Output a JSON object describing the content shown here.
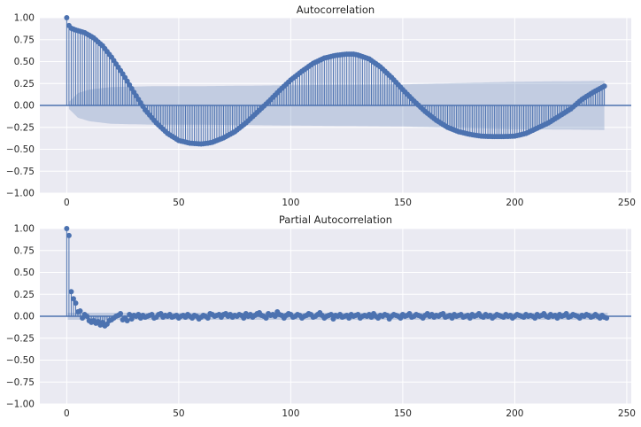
{
  "chart_data": [
    {
      "type": "stem",
      "title": "Autocorrelation",
      "xlabel": "",
      "ylabel": "",
      "xlim": [
        -12,
        252
      ],
      "ylim": [
        -1.0,
        1.0
      ],
      "xticks": [
        0,
        50,
        100,
        150,
        200,
        250
      ],
      "yticks": [
        -1.0,
        -0.75,
        -0.5,
        -0.25,
        0.0,
        0.25,
        0.5,
        0.75,
        1.0
      ],
      "xtick_labels": [
        "0",
        "50",
        "100",
        "150",
        "200",
        "250"
      ],
      "ytick_labels": [
        "−1.00",
        "−0.75",
        "−0.50",
        "−0.25",
        "0.00",
        "0.25",
        "0.50",
        "0.75",
        "1.00"
      ],
      "grid": true,
      "color": "#4c72b0",
      "lags": [
        0,
        1,
        2,
        4,
        8,
        12,
        16,
        20,
        25,
        30,
        35,
        40,
        45,
        50,
        55,
        60,
        63,
        65,
        70,
        75,
        80,
        85,
        90,
        95,
        100,
        105,
        110,
        115,
        120,
        125,
        128,
        130,
        135,
        140,
        145,
        150,
        155,
        160,
        165,
        170,
        175,
        180,
        185,
        190,
        195,
        200,
        205,
        210,
        215,
        220,
        225,
        230,
        235,
        240
      ],
      "values": [
        1.0,
        0.91,
        0.88,
        0.86,
        0.83,
        0.77,
        0.68,
        0.55,
        0.36,
        0.15,
        -0.05,
        -0.2,
        -0.32,
        -0.4,
        -0.43,
        -0.44,
        -0.43,
        -0.42,
        -0.37,
        -0.3,
        -0.2,
        -0.08,
        0.04,
        0.17,
        0.29,
        0.39,
        0.48,
        0.54,
        0.57,
        0.585,
        0.585,
        0.575,
        0.53,
        0.44,
        0.32,
        0.18,
        0.05,
        -0.07,
        -0.17,
        -0.25,
        -0.3,
        -0.33,
        -0.35,
        -0.355,
        -0.355,
        -0.35,
        -0.32,
        -0.26,
        -0.2,
        -0.12,
        -0.04,
        0.07,
        0.15,
        0.22
      ],
      "confidence_band": {
        "lags": [
          1,
          5,
          10,
          20,
          40,
          60,
          100,
          150,
          200,
          240
        ],
        "upper": [
          0.04,
          0.14,
          0.18,
          0.21,
          0.22,
          0.22,
          0.23,
          0.24,
          0.27,
          0.28
        ],
        "lower": [
          -0.04,
          -0.14,
          -0.18,
          -0.21,
          -0.22,
          -0.22,
          -0.23,
          -0.24,
          -0.27,
          -0.28
        ]
      }
    },
    {
      "type": "stem",
      "title": "Partial Autocorrelation",
      "xlabel": "",
      "ylabel": "",
      "xlim": [
        -12,
        252
      ],
      "ylim": [
        -1.0,
        1.0
      ],
      "xticks": [
        0,
        50,
        100,
        150,
        200,
        250
      ],
      "yticks": [
        -1.0,
        -0.75,
        -0.5,
        -0.25,
        0.0,
        0.25,
        0.5,
        0.75,
        1.0
      ],
      "xtick_labels": [
        "0",
        "50",
        "100",
        "150",
        "200",
        "250"
      ],
      "ytick_labels": [
        "−1.00",
        "−0.75",
        "−0.50",
        "−0.25",
        "0.00",
        "0.25",
        "0.50",
        "0.75",
        "1.00"
      ],
      "grid": true,
      "color": "#4c72b0",
      "values": [
        1.0,
        0.92,
        0.28,
        0.2,
        0.15,
        0.05,
        0.06,
        -0.02,
        0.02,
        0.0,
        -0.05,
        -0.07,
        -0.05,
        -0.08,
        -0.06,
        -0.1,
        -0.07,
        -0.11,
        -0.09,
        -0.05,
        -0.04,
        -0.02,
        0.0,
        0.01,
        0.03,
        -0.04,
        -0.02,
        -0.05,
        0.02,
        -0.03,
        0.01,
        0.0,
        0.02,
        -0.02,
        0.01,
        -0.01,
        0.0,
        0.01,
        0.02,
        -0.02,
        -0.01,
        0.02,
        0.03,
        -0.01,
        0.01,
        0.0,
        0.02,
        -0.01,
        0.0,
        0.01,
        -0.02,
        0.0,
        0.01,
        -0.01,
        0.02,
        0.0,
        -0.02,
        0.01,
        0.0,
        -0.03,
        -0.01,
        0.01,
        0.0,
        -0.02,
        0.03,
        0.02,
        0.0,
        0.01,
        0.02,
        -0.01,
        0.02,
        0.03,
        0.0,
        0.02,
        -0.01,
        0.01,
        0.0,
        0.02,
        0.01,
        -0.02,
        0.03,
        0.0,
        0.02,
        -0.01,
        0.01,
        0.03,
        0.04,
        0.01,
        0.0,
        -0.02,
        0.03,
        0.01,
        0.02,
        0.0,
        0.05,
        0.02,
        0.01,
        -0.02,
        0.01,
        0.03,
        0.02,
        -0.01,
        0.0,
        0.02,
        0.01,
        -0.02,
        0.0,
        0.01,
        0.03,
        0.02,
        -0.01,
        0.0,
        0.02,
        0.04,
        0.01,
        -0.02,
        0.0,
        0.01,
        0.02,
        -0.03,
        0.01,
        0.0,
        0.02,
        -0.01,
        0.0,
        0.01,
        -0.02,
        0.02,
        0.0,
        0.01,
        0.02,
        -0.02,
        0.0,
        0.01,
        0.0,
        0.02,
        -0.01,
        0.03,
        0.0,
        -0.02,
        0.01,
        0.0,
        0.02,
        0.01,
        -0.03,
        0.0,
        0.02,
        0.01,
        0.0,
        -0.02,
        0.02,
        0.0,
        0.01,
        0.03,
        -0.01,
        0.0,
        0.02,
        0.01,
        0.0,
        -0.02,
        0.01,
        0.03,
        0.0,
        0.02,
        -0.01,
        0.01,
        0.0,
        0.02,
        0.03,
        -0.01,
        0.0,
        0.01,
        -0.02,
        0.02,
        0.0,
        0.01,
        0.02,
        -0.01,
        0.0,
        0.01,
        -0.02,
        0.02,
        0.0,
        0.01,
        0.03,
        0.0,
        -0.01,
        0.02,
        0.0,
        0.01,
        -0.02,
        0.0,
        0.02,
        0.01,
        0.0,
        -0.01,
        0.02,
        0.0,
        0.01,
        -0.02,
        0.0,
        0.02,
        0.01,
        0.0,
        -0.01,
        0.02,
        0.0,
        0.01,
        0.0,
        -0.02,
        0.02,
        0.0,
        0.01,
        0.03,
        0.0,
        -0.01,
        0.02,
        0.0,
        0.01,
        -0.02,
        0.02,
        0.0,
        0.01,
        0.03,
        -0.01,
        0.0,
        0.02,
        0.01,
        0.0,
        -0.02,
        0.01,
        0.0,
        0.02,
        0.01,
        -0.01,
        0.0,
        0.02,
        0.0,
        -0.02,
        0.01,
        -0.01,
        -0.02
      ],
      "confidence_band": {
        "upper": 0.04,
        "lower": -0.04
      }
    }
  ]
}
